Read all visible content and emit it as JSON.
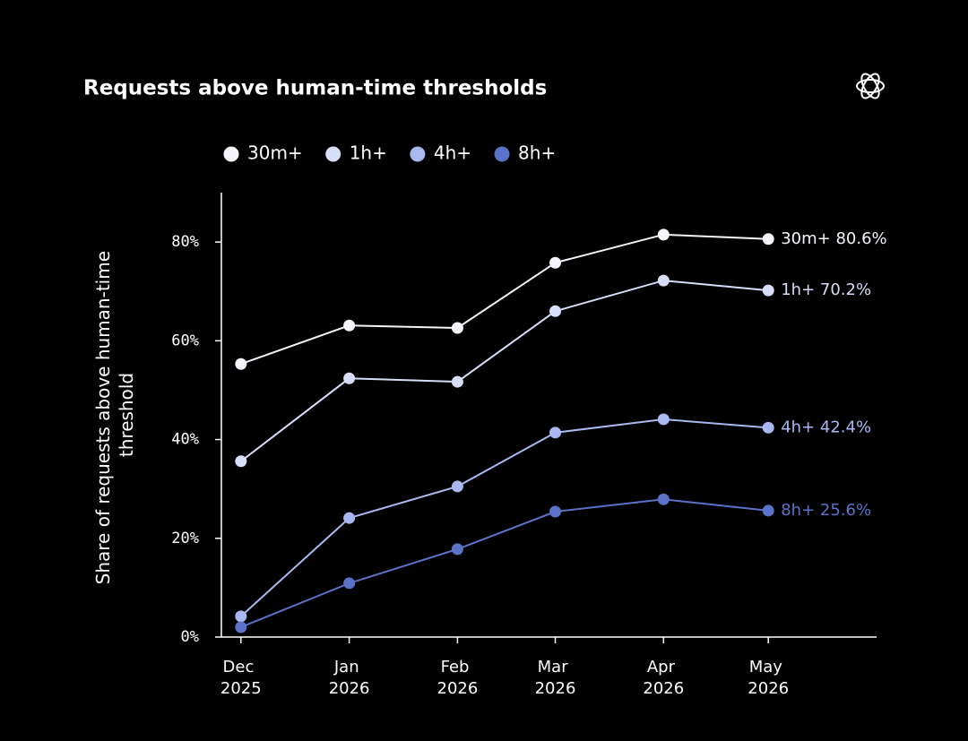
{
  "chart_data": {
    "type": "line",
    "title": "Requests above human-time thresholds",
    "y_label": "Share of requests above human-time threshold",
    "categories": [
      "Dec 2025",
      "Jan 2026",
      "Feb 2026",
      "Mar 2026",
      "Apr 2026",
      "May 2026"
    ],
    "ylim": [
      0,
      90
    ],
    "yticks": [
      {
        "value": 0,
        "label": "0%"
      },
      {
        "value": 20,
        "label": "20%"
      },
      {
        "value": 40,
        "label": "40%"
      },
      {
        "value": 60,
        "label": "60%"
      },
      {
        "value": 80,
        "label": "80%"
      }
    ],
    "grid": false,
    "legend": "top-left",
    "series": [
      {
        "name": "30m+",
        "color": "#f4f5fb",
        "values": [
          55.3,
          63.1,
          62.6,
          75.8,
          81.5,
          80.6
        ],
        "value_labels": [
          null,
          null,
          null,
          null,
          null,
          "80.6%"
        ]
      },
      {
        "name": "1h+",
        "color": "#d6defa",
        "values": [
          35.6,
          52.4,
          51.7,
          66.0,
          72.2,
          70.2
        ],
        "value_labels": [
          null,
          null,
          null,
          null,
          null,
          "70.2%"
        ]
      },
      {
        "name": "4h+",
        "color": "#a9b8f0",
        "values": [
          4.2,
          24.1,
          30.5,
          41.4,
          44.1,
          42.4
        ],
        "value_labels": [
          null,
          null,
          null,
          null,
          null,
          "42.4%"
        ]
      },
      {
        "name": "8h+",
        "color": "#5a72c8",
        "values": [
          2.0,
          10.9,
          17.8,
          25.4,
          27.9,
          25.6
        ],
        "value_labels": [
          null,
          null,
          null,
          null,
          null,
          "25.6%"
        ]
      }
    ]
  }
}
